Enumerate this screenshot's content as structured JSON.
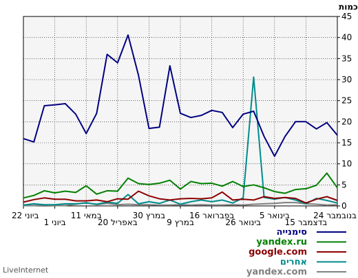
{
  "chart_data": {
    "type": "line",
    "ylabel": "כמות",
    "ylim": [
      0,
      45
    ],
    "yticks": [
      0,
      5,
      10,
      15,
      20,
      25,
      30,
      35,
      40,
      45
    ],
    "grid": true,
    "x_axis_direction": "right-to-left",
    "legend_position": "bottom-right",
    "xticks": [
      {
        "label": "24 בנובמבר",
        "row": 1
      },
      {
        "label": "15 בדצמבר",
        "row": 2
      },
      {
        "label": "5 בינואר",
        "row": 1
      },
      {
        "label": "26 בינואר",
        "row": 2
      },
      {
        "label": "16 בפברואר",
        "row": 1
      },
      {
        "label": "9 במרץ",
        "row": 2
      },
      {
        "label": "30 במרץ",
        "row": 1
      },
      {
        "label": "20 באפריל",
        "row": 2
      },
      {
        "label": "11 במאי",
        "row": 1
      },
      {
        "label": "1 ביוני",
        "row": 2
      },
      {
        "label": "22 ביוני",
        "row": 1
      }
    ],
    "series": [
      {
        "name": "סימנייה",
        "color": "#000080",
        "values": [
          16,
          15.2,
          23.8,
          24,
          24.3,
          21.8,
          17.2,
          22,
          36,
          34,
          40.6,
          31,
          18.4,
          18.7,
          33.3,
          22,
          21,
          21.5,
          22.7,
          22.2,
          18.6,
          21.8,
          22.5,
          16.5,
          11.8,
          16.5,
          20,
          20,
          18.3,
          19.8,
          16.8
        ]
      },
      {
        "name": "yandex.ru",
        "color": "#008000",
        "values": [
          1.9,
          2.5,
          3.6,
          3.1,
          3.5,
          3.2,
          4.8,
          2.8,
          3.6,
          3.5,
          6.6,
          5.3,
          5.1,
          5.4,
          6.1,
          4,
          5.8,
          5.3,
          5.4,
          4.7,
          5.8,
          4.6,
          5,
          4.3,
          3.4,
          3,
          3.9,
          4.1,
          4.9,
          7.8,
          4.3
        ]
      },
      {
        "name": "google.com",
        "color": "#8b0000",
        "values": [
          0.9,
          1.5,
          1.9,
          1.6,
          1.6,
          1.2,
          1.2,
          1.4,
          1,
          1.7,
          1.6,
          3.5,
          2.4,
          1.7,
          1.4,
          1.7,
          1.8,
          1.7,
          1.9,
          3.3,
          1.4,
          1.6,
          1.4,
          2.2,
          1.8,
          2,
          1.8,
          0.7,
          1.6,
          2.2,
          1.3
        ]
      },
      {
        "name": "אחרים",
        "color": "#008b8b",
        "values": [
          0.2,
          0.5,
          0.3,
          0.3,
          0.5,
          0.5,
          0.7,
          0.4,
          0.9,
          0.6,
          2.7,
          0.5,
          1,
          0.6,
          1.4,
          0.4,
          1,
          1.4,
          1,
          1.4,
          0.7,
          1.9,
          30.6,
          2,
          1.6,
          2,
          1.4,
          0.5,
          1.8,
          1.3,
          0.7
        ]
      },
      {
        "name": "yandex.com",
        "color": "#808080",
        "values": [
          0.1,
          0.1,
          0.2,
          0.1,
          0.1,
          0.4,
          0.8,
          0.3,
          0.6,
          0.3,
          0.4,
          0.3,
          0.3,
          0.2,
          0.2,
          0.3,
          0.2,
          0.3,
          0.2,
          0.2,
          0.3,
          0.2,
          0.4,
          0.5,
          0.6,
          0.8,
          0.8,
          0.5,
          0.4,
          0.2,
          0.3
        ]
      }
    ]
  },
  "branding": {
    "text": "LiveInternet"
  }
}
